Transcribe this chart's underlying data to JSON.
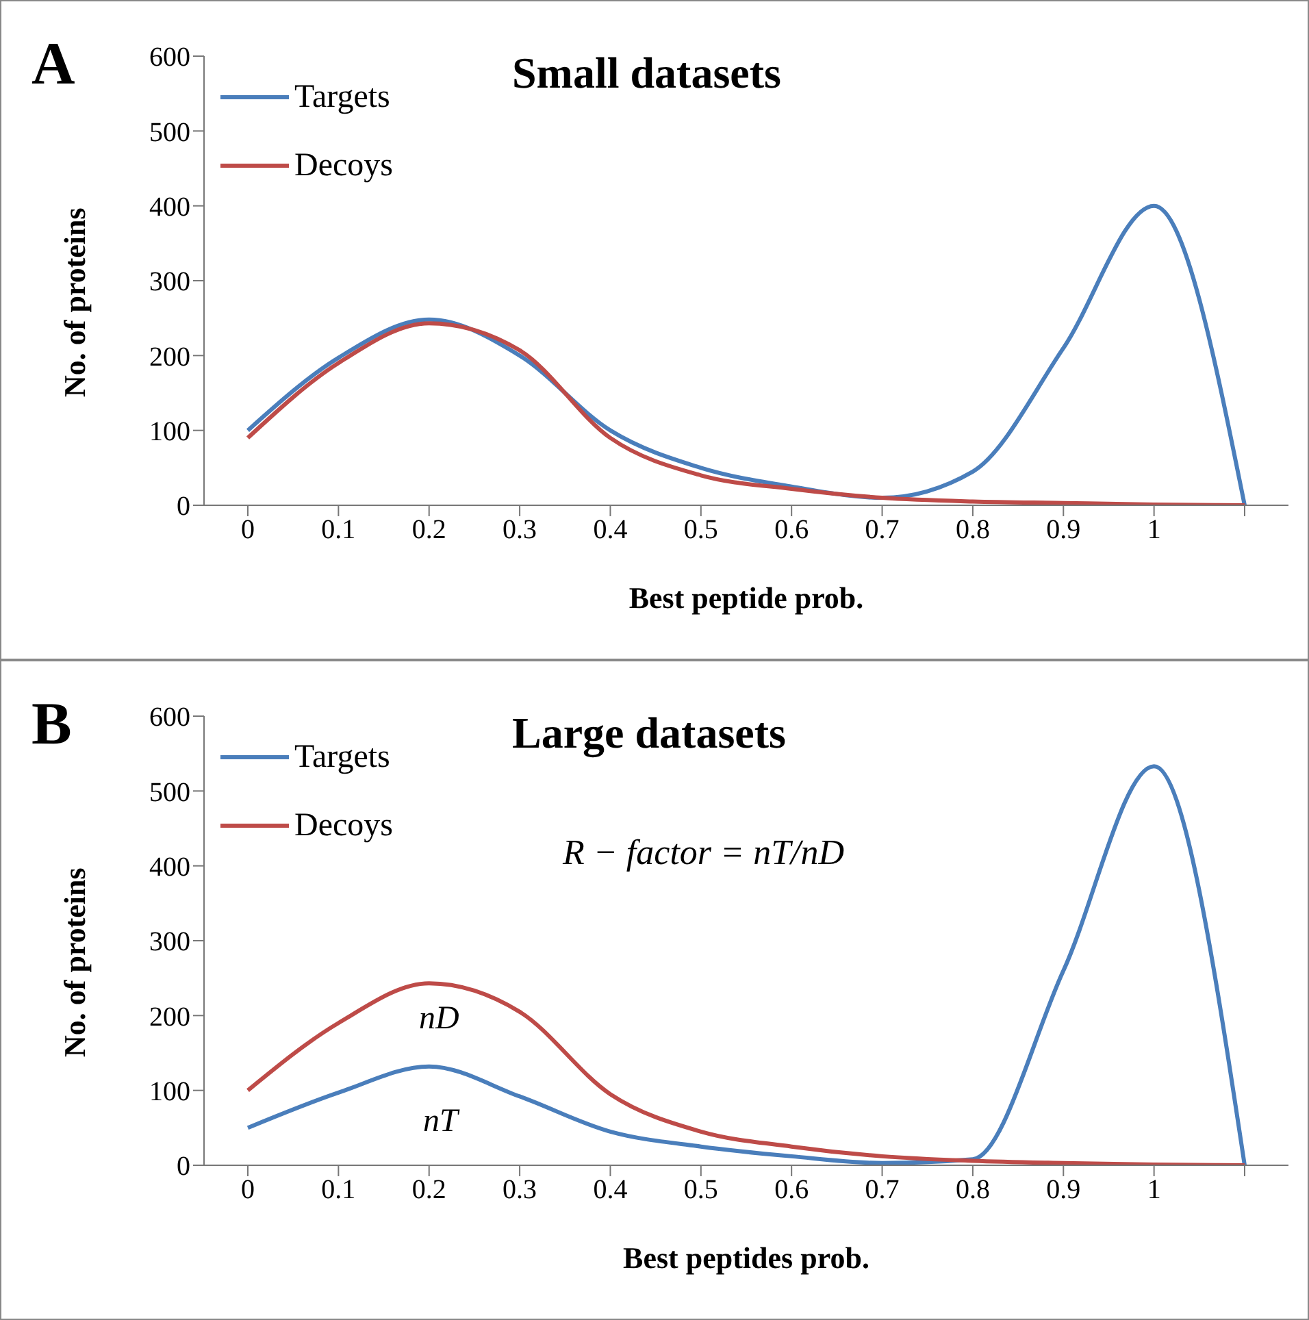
{
  "chart_data": [
    {
      "type": "line",
      "title": "Small datasets",
      "xlabel": "Best peptide prob.",
      "ylabel": "No. of proteins",
      "categories": [
        "0",
        "0.1",
        "0.2",
        "0.3",
        "0.4",
        "0.5",
        "0.6",
        "0.7",
        "0.8",
        "0.9",
        "1",
        null
      ],
      "ylim": [
        0,
        600
      ],
      "yticks": [
        0,
        100,
        200,
        300,
        400,
        500,
        600
      ],
      "grid": false,
      "legend": "top left",
      "marker": "none",
      "line_style": "solid",
      "annotations": [
        "A"
      ],
      "series": [
        {
          "name": "Targets",
          "color": "#4a7ebb",
          "values": [
            100,
            197,
            248,
            200,
            100,
            50,
            25,
            10,
            45,
            210,
            400,
            0
          ]
        },
        {
          "name": "Decoys",
          "color": "#be4b48",
          "values": [
            90,
            190,
            243,
            207,
            90,
            40,
            22,
            10,
            5,
            3,
            1,
            0
          ]
        }
      ]
    },
    {
      "type": "line",
      "title": "Large datasets",
      "xlabel": "Best peptides prob.",
      "ylabel": "No. of proteins",
      "categories": [
        "0",
        "0.1",
        "0.2",
        "0.3",
        "0.4",
        "0.5",
        "0.6",
        "0.7",
        "0.8",
        "0.9",
        "1",
        null
      ],
      "ylim": [
        0,
        600
      ],
      "yticks": [
        0,
        100,
        200,
        300,
        400,
        500,
        600
      ],
      "grid": false,
      "legend": "top left",
      "marker": "none",
      "line_style": "solid",
      "annotations": [
        "B",
        "R − factor = nT/nD",
        "nD",
        "nT"
      ],
      "series": [
        {
          "name": "Targets",
          "color": "#4a7ebb",
          "values": [
            50,
            97,
            132,
            92,
            45,
            25,
            12,
            3,
            8,
            260,
            533,
            0
          ]
        },
        {
          "name": "Decoys",
          "color": "#be4b48",
          "values": [
            100,
            190,
            243,
            205,
            95,
            45,
            25,
            12,
            6,
            3,
            1,
            0
          ]
        }
      ]
    }
  ]
}
